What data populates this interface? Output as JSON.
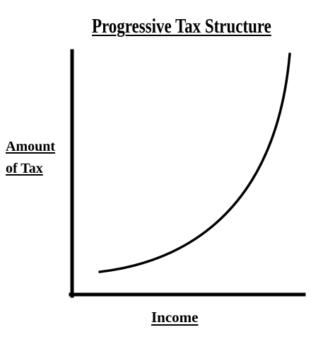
{
  "diagram": {
    "title": "Progressive Tax Structure",
    "y_axis_label_lines": [
      "Amount",
      "of Tax"
    ],
    "x_axis_label": "Income",
    "curve": "convex increasing",
    "line_color": "#000000"
  }
}
